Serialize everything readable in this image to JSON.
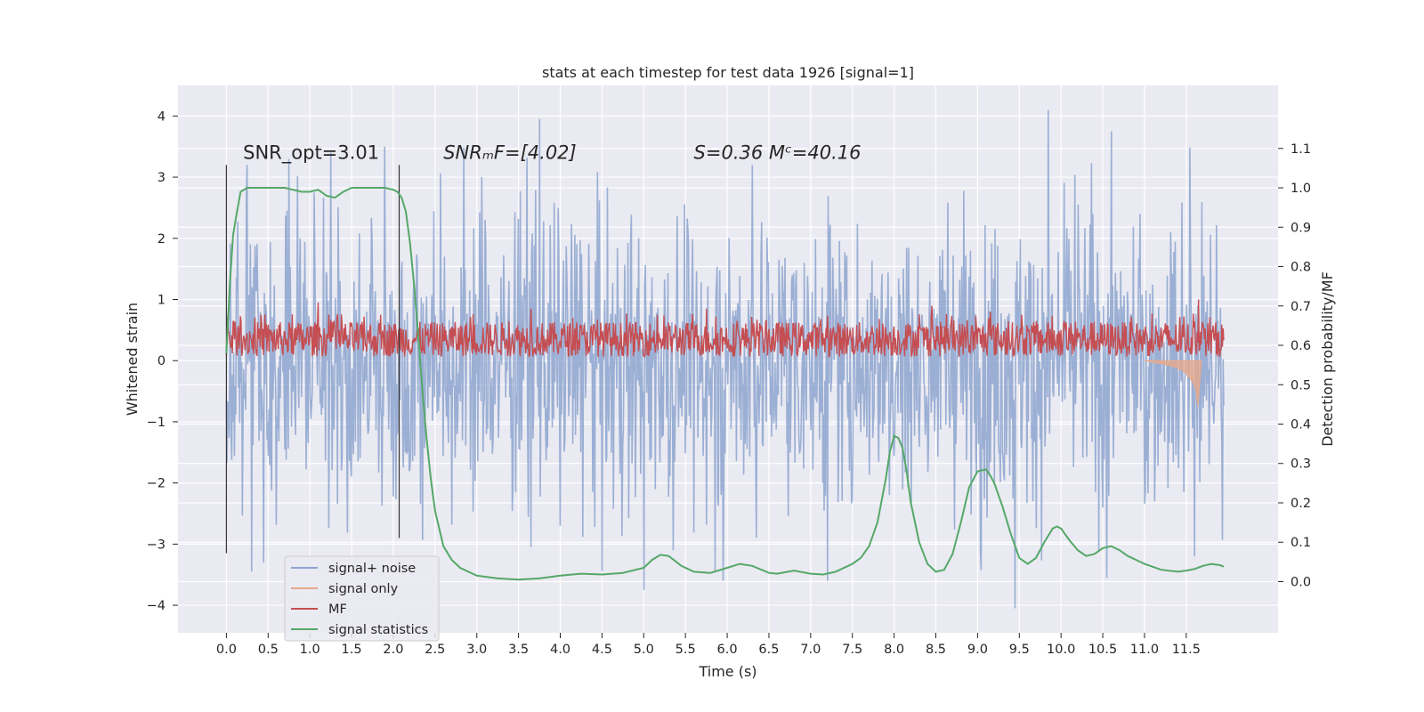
{
  "chart_data": {
    "type": "line",
    "title": "stats at each timestep for test data 1926 [signal=1]",
    "xlabel": "Time (s)",
    "ylabel": "Whitened strain",
    "y2label": "Detection probability/MF",
    "xlim": [
      -0.58,
      12.6
    ],
    "ylim": [
      -4.45,
      4.5
    ],
    "y2lim": [
      -0.13,
      1.26
    ],
    "x_ticks": [
      0.0,
      0.5,
      1.0,
      1.5,
      2.0,
      2.5,
      3.0,
      3.5,
      4.0,
      4.5,
      5.0,
      5.5,
      6.0,
      6.5,
      7.0,
      7.5,
      8.0,
      8.5,
      9.0,
      9.5,
      10.0,
      10.5,
      11.0,
      11.5
    ],
    "x_tick_labels": [
      "0.0",
      "0.5",
      "1.0",
      "1.5",
      "2.0",
      "2.5",
      "3.0",
      "3.5",
      "4.0",
      "4.5",
      "5.0",
      "5.5",
      "6.0",
      "6.5",
      "7.0",
      "7.5",
      "8.0",
      "8.5",
      "9.0",
      "9.5",
      "10.0",
      "10.5",
      "11.0",
      "11.5"
    ],
    "y_ticks": [
      4,
      3,
      2,
      1,
      0,
      -1,
      -2,
      -3,
      -4
    ],
    "y_tick_labels": [
      "4",
      "3",
      "2",
      "1",
      "0",
      "−1",
      "−2",
      "−3",
      "−4"
    ],
    "y2_ticks": [
      1.1,
      1.0,
      0.9,
      0.8,
      0.7,
      0.6,
      0.5,
      0.4,
      0.3,
      0.2,
      0.1,
      0.0
    ],
    "y2_tick_labels": [
      "1.1",
      "1.0",
      "0.9",
      "0.8",
      "0.7",
      "0.6",
      "0.5",
      "0.4",
      "0.3",
      "0.2",
      "0.1",
      "0.0"
    ],
    "grid": true,
    "legend_position": "lower-left",
    "annotations": [
      {
        "text": "SNR_opt=3.01",
        "x": 0.2,
        "y": 3.3,
        "style": "normal"
      },
      {
        "text": "SNRₘF=[4.02]",
        "x": 2.6,
        "y": 3.3,
        "style": "italic"
      },
      {
        "text": "S=0.36   Mᶜ=40.16",
        "x": 5.6,
        "y": 3.3,
        "style": "italic"
      }
    ],
    "vlines": [
      {
        "x": 0.0,
        "ymin": -3.15,
        "ymax": 3.2
      },
      {
        "x": 2.07,
        "ymin": -2.9,
        "ymax": 3.2
      }
    ],
    "series": [
      {
        "name": "signal+ noise",
        "color": "#8da4cf",
        "axis": "left",
        "kind": "noise",
        "x_range": [
          0.0,
          11.95
        ],
        "envelope": {
          "upper_typical": 2.0,
          "lower_typical": -2.2,
          "upper_max": 4.1,
          "lower_min": -4.05
        },
        "spikes": [
          {
            "x": 0.25,
            "y": 3.2
          },
          {
            "x": 0.75,
            "y": 3.3
          },
          {
            "x": 1.25,
            "y": 3.4
          },
          {
            "x": 1.9,
            "y": 3.5
          },
          {
            "x": 3.75,
            "y": 3.95
          },
          {
            "x": 9.85,
            "y": 4.1
          },
          {
            "x": 10.6,
            "y": 3.75
          },
          {
            "x": 6.3,
            "y": 3.2
          },
          {
            "x": 0.3,
            "y": -3.45
          },
          {
            "x": 0.45,
            "y": -3.3
          },
          {
            "x": 5.0,
            "y": -3.75
          },
          {
            "x": 5.95,
            "y": -3.6
          },
          {
            "x": 9.45,
            "y": -4.05
          },
          {
            "x": 7.2,
            "y": -3.6
          },
          {
            "x": 11.6,
            "y": -3.2
          },
          {
            "x": 10.55,
            "y": -3.55
          }
        ]
      },
      {
        "name": "signal only",
        "color": "#e7a98b",
        "axis": "left",
        "kind": "chirp",
        "x": [
          11.0,
          11.2,
          11.35,
          11.45,
          11.52,
          11.58,
          11.62,
          11.64,
          11.66,
          11.68
        ],
        "y": [
          0.0,
          -0.05,
          -0.1,
          -0.15,
          -0.25,
          -0.35,
          -0.5,
          -0.75,
          -0.4,
          0.0
        ]
      },
      {
        "name": "MF",
        "color": "#c44e52",
        "axis": "left",
        "kind": "band",
        "x_range": [
          0.0,
          11.95
        ],
        "band": {
          "low": 0.05,
          "mid": 0.35,
          "high": 0.62
        },
        "spikes": [
          {
            "x": 1.1,
            "y": 0.95
          },
          {
            "x": 3.65,
            "y": 0.85
          },
          {
            "x": 5.75,
            "y": 0.85
          },
          {
            "x": 8.45,
            "y": 0.9
          },
          {
            "x": 9.15,
            "y": 0.8
          },
          {
            "x": 11.65,
            "y": 1.0
          }
        ]
      },
      {
        "name": "signal statistics",
        "color": "#55a868",
        "axis": "right",
        "kind": "line",
        "x": [
          0.0,
          0.04,
          0.08,
          0.12,
          0.17,
          0.25,
          0.35,
          0.5,
          0.7,
          0.9,
          1.0,
          1.1,
          1.2,
          1.3,
          1.4,
          1.5,
          1.7,
          1.9,
          2.0,
          2.05,
          2.1,
          2.15,
          2.2,
          2.25,
          2.3,
          2.35,
          2.4,
          2.45,
          2.5,
          2.6,
          2.7,
          2.8,
          3.0,
          3.25,
          3.5,
          3.75,
          4.0,
          4.25,
          4.5,
          4.75,
          5.0,
          5.1,
          5.2,
          5.3,
          5.45,
          5.6,
          5.8,
          6.0,
          6.15,
          6.3,
          6.5,
          6.6,
          6.8,
          7.0,
          7.15,
          7.3,
          7.5,
          7.6,
          7.7,
          7.8,
          7.9,
          7.95,
          8.0,
          8.05,
          8.1,
          8.15,
          8.2,
          8.3,
          8.4,
          8.5,
          8.6,
          8.7,
          8.8,
          8.9,
          9.0,
          9.1,
          9.15,
          9.2,
          9.3,
          9.4,
          9.5,
          9.6,
          9.7,
          9.8,
          9.9,
          9.95,
          10.0,
          10.05,
          10.1,
          10.2,
          10.3,
          10.4,
          10.5,
          10.6,
          10.65,
          10.7,
          10.8,
          10.9,
          11.0,
          11.2,
          11.4,
          11.5,
          11.6,
          11.7,
          11.8,
          11.9,
          11.95
        ],
        "y": [
          0.58,
          0.75,
          0.88,
          0.93,
          0.99,
          1.0,
          1.0,
          1.0,
          1.0,
          0.99,
          0.99,
          0.995,
          0.98,
          0.975,
          0.99,
          1.0,
          1.0,
          1.0,
          0.995,
          0.99,
          0.975,
          0.94,
          0.86,
          0.75,
          0.62,
          0.48,
          0.36,
          0.26,
          0.18,
          0.09,
          0.055,
          0.035,
          0.015,
          0.008,
          0.005,
          0.008,
          0.015,
          0.02,
          0.018,
          0.022,
          0.035,
          0.055,
          0.068,
          0.065,
          0.04,
          0.025,
          0.022,
          0.035,
          0.045,
          0.04,
          0.022,
          0.02,
          0.028,
          0.02,
          0.018,
          0.025,
          0.045,
          0.06,
          0.09,
          0.15,
          0.26,
          0.33,
          0.37,
          0.365,
          0.34,
          0.28,
          0.2,
          0.1,
          0.045,
          0.025,
          0.03,
          0.07,
          0.15,
          0.24,
          0.28,
          0.285,
          0.27,
          0.25,
          0.19,
          0.12,
          0.06,
          0.045,
          0.06,
          0.1,
          0.135,
          0.14,
          0.135,
          0.12,
          0.105,
          0.08,
          0.065,
          0.07,
          0.085,
          0.09,
          0.085,
          0.08,
          0.065,
          0.055,
          0.045,
          0.03,
          0.025,
          0.028,
          0.032,
          0.04,
          0.045,
          0.042,
          0.038
        ]
      }
    ]
  }
}
